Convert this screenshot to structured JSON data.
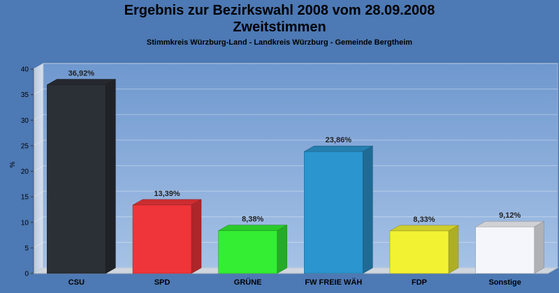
{
  "header": {
    "title": "Ergebnis zur Bezirkswahl 2008 vom 28.09.2008",
    "subtitle": "Zweitstimmen",
    "location": "Stimmkreis Würzburg-Land - Landkreis Würzburg - Gemeinde Bergtheim"
  },
  "chart_data": {
    "type": "bar",
    "title": "Ergebnis zur Bezirkswahl 2008 vom 28.09.2008",
    "subtitle": "Zweitstimmen",
    "xlabel": "",
    "ylabel": "%",
    "ylim": [
      0,
      40
    ],
    "yticks": [
      0,
      5,
      10,
      15,
      20,
      25,
      30,
      35,
      40
    ],
    "grid": true,
    "categories": [
      "CSU",
      "SPD",
      "GRÜNE",
      "FW FREIE WÄH",
      "FDP",
      "Sonstige"
    ],
    "values": [
      36.92,
      13.39,
      8.38,
      23.86,
      8.33,
      9.12
    ],
    "value_labels": [
      "36,92%",
      "13,39%",
      "8,38%",
      "23,86%",
      "8,33%",
      "9,12%"
    ],
    "colors": [
      "#2b2f36",
      "#f0353a",
      "#33ee33",
      "#2b95cf",
      "#f2f233",
      "#f4f6fb"
    ]
  }
}
